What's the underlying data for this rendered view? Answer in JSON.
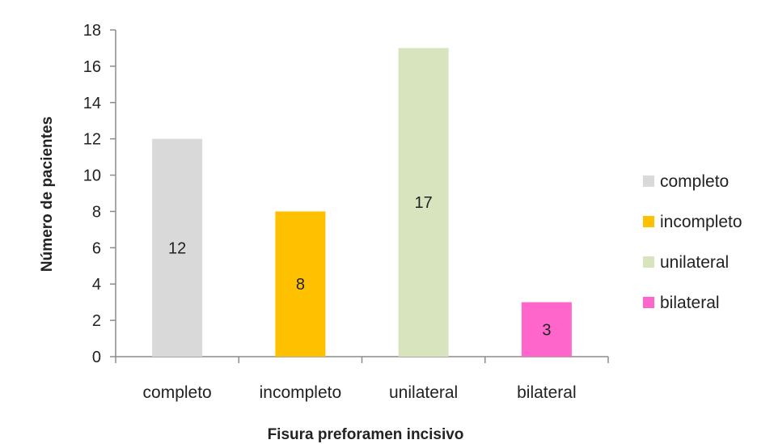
{
  "chart_data": {
    "type": "bar",
    "title": "",
    "xlabel": "Fisura preforamen incisivo",
    "ylabel": "Número de pacientes",
    "categories": [
      "completo",
      "incompleto",
      "unilateral",
      "bilateral"
    ],
    "values": [
      12,
      8,
      17,
      3
    ],
    "data_labels": [
      "12",
      "8",
      "17",
      "3"
    ],
    "colors": [
      "#d9d9d9",
      "#ffc000",
      "#d7e4bd",
      "#ff66cc"
    ],
    "ylim": [
      0,
      18
    ],
    "yticks": [
      0,
      2,
      4,
      6,
      8,
      10,
      12,
      14,
      16,
      18
    ],
    "grid": false,
    "legend": {
      "position": "right",
      "entries": [
        "completo",
        "incompleto",
        "unilateral",
        "bilateral"
      ]
    }
  }
}
